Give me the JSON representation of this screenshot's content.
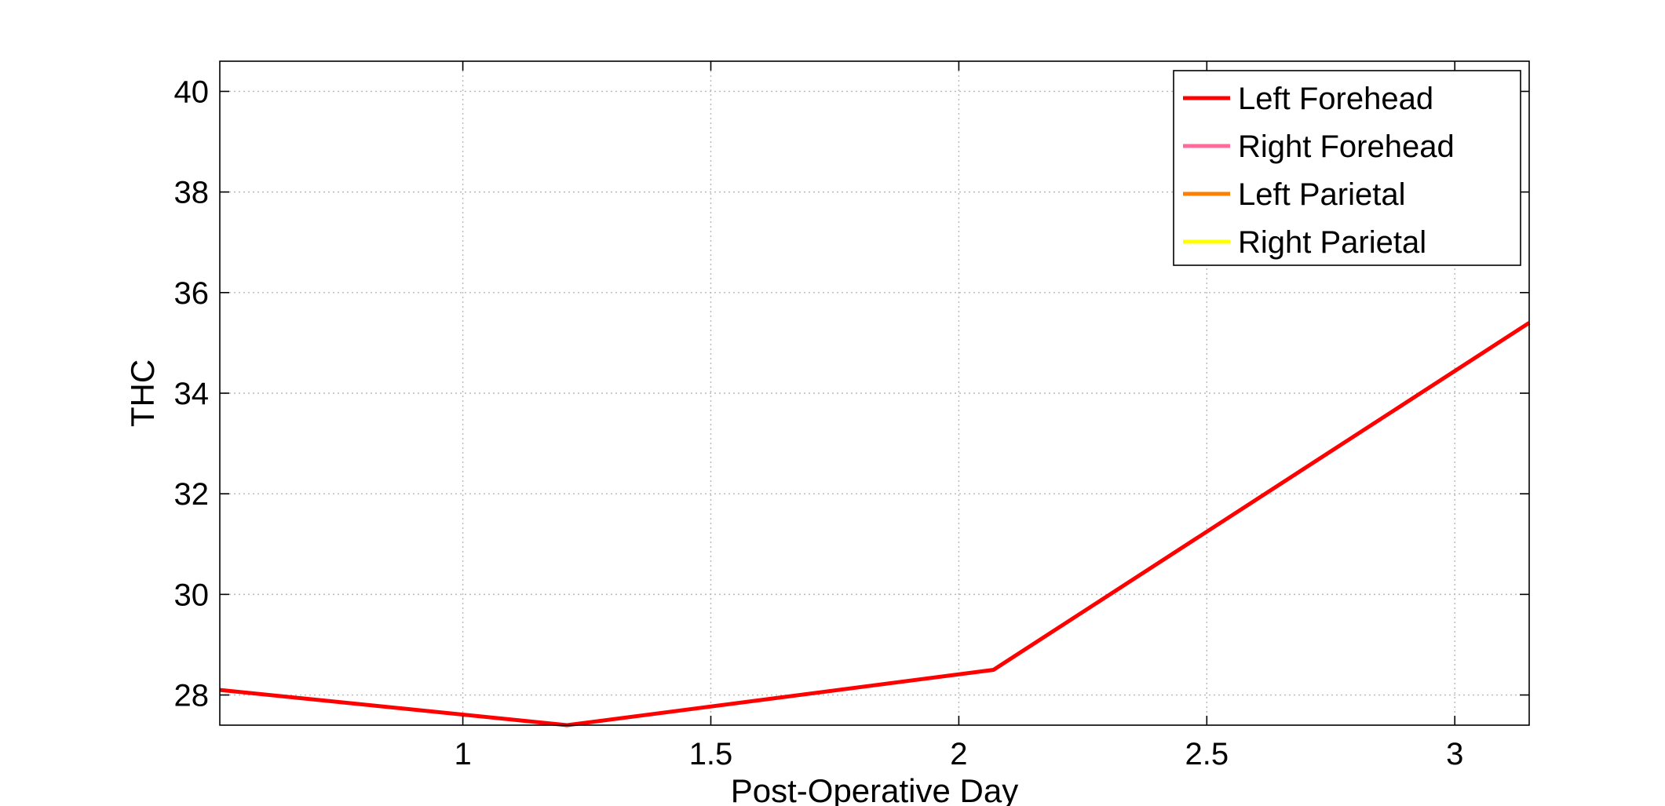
{
  "chart_data": {
    "type": "line",
    "title": "",
    "xlabel": "Post-Operative Day",
    "ylabel": "THC",
    "xlim": [
      0.51,
      3.15
    ],
    "ylim": [
      27.4,
      40.6
    ],
    "xticks": [
      1,
      1.5,
      2,
      2.5,
      3
    ],
    "xtick_labels": [
      "1",
      "1.5",
      "2",
      "2.5",
      "3"
    ],
    "yticks": [
      28,
      30,
      32,
      34,
      36,
      38,
      40
    ],
    "ytick_labels": [
      "28",
      "30",
      "32",
      "34",
      "36",
      "38",
      "40"
    ],
    "grid": true,
    "legend_position": "top-right",
    "series": [
      {
        "name": "Left Forehead",
        "color": "#ff0000",
        "x": [
          0.51,
          1.21,
          2.07,
          3.15
        ],
        "y": [
          28.1,
          27.4,
          28.5,
          35.4
        ]
      },
      {
        "name": "Right Forehead",
        "color": "#ff6a9a",
        "x": [],
        "y": []
      },
      {
        "name": "Left Parietal",
        "color": "#ff7f00",
        "x": [],
        "y": []
      },
      {
        "name": "Right Parietal",
        "color": "#ffff00",
        "x": [],
        "y": []
      }
    ]
  }
}
